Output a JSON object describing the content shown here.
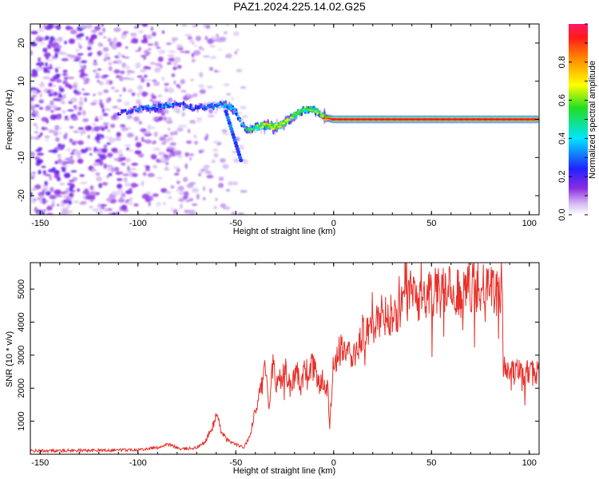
{
  "title": "PAZ1.2024.225.14.02.G25",
  "colors": {
    "snr_line": "#e8302a",
    "ridge_core": "#ff2222",
    "scatter": "#9a5cf0"
  },
  "chart_data": [
    {
      "type": "heatmap",
      "title": "PAZ1.2024.225.14.02.G25",
      "xlabel": "Height of straight line (km)",
      "ylabel": "Frequency (Hz)",
      "xlim": [
        -155,
        105
      ],
      "ylim": [
        -25,
        25
      ],
      "xticks": [
        -150,
        -100,
        -50,
        0,
        50,
        100
      ],
      "yticks": [
        -20,
        -10,
        0,
        10,
        20
      ],
      "colorbar": {
        "label": "Normalized spectral amplitude",
        "range": [
          0.0,
          1.0
        ],
        "ticks": [
          "0.0",
          "0.2",
          "0.4",
          "0.6",
          "0.8"
        ],
        "colormap": "rainbow (white-violet-blue-cyan-green-yellow-orange-red)"
      },
      "ridge": {
        "x": [
          -110,
          -100,
          -90,
          -80,
          -70,
          -60,
          -55,
          -50,
          -47,
          -45,
          -40,
          -35,
          -30,
          -25,
          -20,
          -15,
          -10,
          -7,
          -5,
          0,
          10,
          20,
          40,
          60,
          80,
          100,
          105
        ],
        "frequency": [
          1.5,
          3,
          3,
          4,
          3,
          3.5,
          4,
          2,
          -1,
          -3,
          -2,
          -1.5,
          -2,
          -1,
          1,
          2.5,
          2.5,
          1.5,
          0.5,
          0,
          0,
          0,
          0,
          0,
          0,
          0,
          0
        ],
        "amplitude": [
          0.25,
          0.3,
          0.35,
          0.3,
          0.3,
          0.35,
          0.4,
          0.45,
          0.35,
          0.45,
          0.6,
          0.7,
          0.72,
          0.7,
          0.6,
          0.6,
          0.6,
          0.6,
          0.85,
          1.0,
          1.0,
          1.0,
          1.0,
          1.0,
          1.0,
          1.0,
          1.0
        ]
      }
    },
    {
      "type": "line",
      "title": "",
      "xlabel": "Height of straight line (km)",
      "ylabel": "SNR (10 * v/v)",
      "xlim": [
        -155,
        105
      ],
      "ylim": [
        0,
        5800
      ],
      "xticks": [
        -150,
        -100,
        -50,
        0,
        50,
        100
      ],
      "yticks": [
        1000,
        2000,
        3000,
        4000,
        5000
      ],
      "grid": false,
      "series": [
        {
          "x": [
            -155,
            -140,
            -120,
            -100,
            -90,
            -85,
            -82,
            -78,
            -70,
            -66,
            -62,
            -60,
            -58,
            -55,
            -50,
            -46,
            -43,
            -40,
            -37,
            -35,
            -33,
            -31,
            -29,
            -25,
            -22,
            -20,
            -19,
            -17,
            -15,
            -12,
            -10,
            -8,
            -5,
            -3,
            -2,
            0,
            5,
            10,
            15,
            20,
            25,
            30,
            35,
            40,
            45,
            50,
            55,
            60,
            65,
            70,
            75,
            80,
            84,
            86,
            87,
            90,
            95,
            100,
            105
          ],
          "y": [
            100,
            110,
            120,
            140,
            200,
            300,
            250,
            150,
            200,
            350,
            800,
            1200,
            800,
            450,
            300,
            200,
            500,
            1300,
            2000,
            2500,
            1400,
            2800,
            2000,
            2600,
            2000,
            2300,
            2800,
            2000,
            2500,
            2700,
            2600,
            2300,
            2200,
            2000,
            900,
            2800,
            3300,
            3000,
            3700,
            3800,
            4200,
            4200,
            4600,
            4900,
            4700,
            4900,
            5000,
            4950,
            4900,
            5100,
            5000,
            4950,
            4800,
            4700,
            2700,
            2550,
            2500,
            2450,
            2500
          ]
        }
      ]
    }
  ]
}
